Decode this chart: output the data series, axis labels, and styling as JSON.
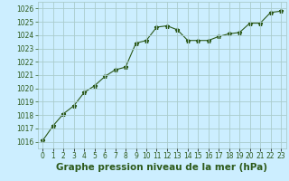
{
  "x": [
    0,
    1,
    2,
    3,
    4,
    5,
    6,
    7,
    8,
    9,
    10,
    11,
    12,
    13,
    14,
    15,
    16,
    17,
    18,
    19,
    20,
    21,
    22,
    23
  ],
  "y": [
    1016.1,
    1017.2,
    1018.1,
    1018.7,
    1019.7,
    1020.2,
    1020.9,
    1021.4,
    1021.6,
    1023.4,
    1023.6,
    1024.6,
    1024.7,
    1024.4,
    1023.6,
    1023.6,
    1023.6,
    1023.9,
    1024.1,
    1024.2,
    1024.9,
    1024.9,
    1025.7,
    1025.8
  ],
  "line_color": "#2d5a1b",
  "marker": "*",
  "marker_size": 3.5,
  "background_color": "#cceeff",
  "grid_color": "#aacccc",
  "xlabel": "Graphe pression niveau de la mer (hPa)",
  "ylabel_ticks": [
    1016,
    1017,
    1018,
    1019,
    1020,
    1021,
    1022,
    1023,
    1024,
    1025,
    1026
  ],
  "ylim": [
    1015.5,
    1026.5
  ],
  "xlim": [
    -0.5,
    23.5
  ],
  "xtick_labels": [
    "0",
    "1",
    "2",
    "3",
    "4",
    "5",
    "6",
    "7",
    "8",
    "9",
    "10",
    "11",
    "12",
    "13",
    "14",
    "15",
    "16",
    "17",
    "18",
    "19",
    "20",
    "21",
    "22",
    "23"
  ],
  "tick_color": "#2d5a1b",
  "tick_fontsize": 5.5,
  "label_fontsize": 7.5
}
